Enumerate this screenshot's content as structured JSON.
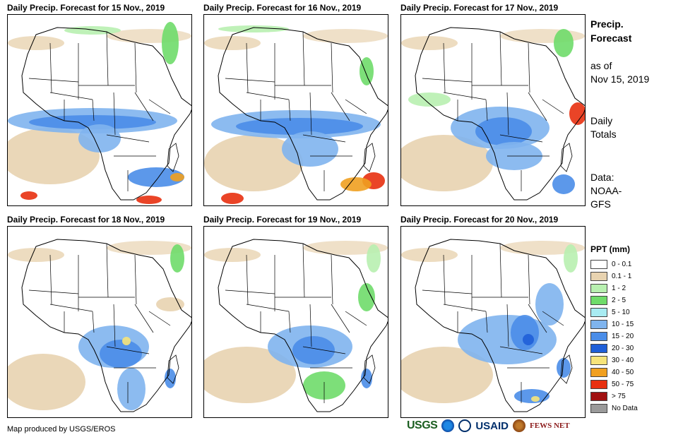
{
  "panels": [
    {
      "title": "Daily Precip. Forecast for 15 Nov., 2019"
    },
    {
      "title": "Daily Precip. Forecast for 16 Nov., 2019"
    },
    {
      "title": "Daily Precip. Forecast for 17 Nov., 2019"
    },
    {
      "title": "Daily Precip. Forecast for 18 Nov., 2019"
    },
    {
      "title": "Daily Precip. Forecast for 19 Nov., 2019"
    },
    {
      "title": "Daily Precip. Forecast for 20 Nov., 2019"
    }
  ],
  "sidebar": {
    "title_line1": "Precip.",
    "title_line2": "Forecast",
    "asof_line1": "as of",
    "asof_line2": "Nov 15, 2019",
    "totals_line1": "Daily",
    "totals_line2": "Totals",
    "data_line1": "Data:",
    "data_line2": "NOAA-",
    "data_line3": "GFS"
  },
  "legend": {
    "title": "PPT (mm)",
    "items": [
      {
        "label": "0 - 0.1",
        "color": "#ffffff"
      },
      {
        "label": "0.1 - 1",
        "color": "#e8d3b0"
      },
      {
        "label": "1 - 2",
        "color": "#b8f0b0"
      },
      {
        "label": "2 - 5",
        "color": "#6fdc6a"
      },
      {
        "label": "5 - 10",
        "color": "#a8ecf2"
      },
      {
        "label": "10 - 15",
        "color": "#7fb4ee"
      },
      {
        "label": "15 - 20",
        "color": "#4a8de8"
      },
      {
        "label": "20 - 30",
        "color": "#1f5fd8"
      },
      {
        "label": "30 - 40",
        "color": "#f6e47a"
      },
      {
        "label": "40 - 50",
        "color": "#f0a020"
      },
      {
        "label": "50 - 75",
        "color": "#e83010"
      },
      {
        "label": "> 75",
        "color": "#a01010"
      },
      {
        "label": "No Data",
        "color": "#9a9a9a"
      }
    ]
  },
  "footer": {
    "credit": "Map produced by USGS/EROS",
    "logo_usgs": "USGS",
    "logo_usaid": "USAID",
    "logo_fews": "FEWS NET"
  }
}
